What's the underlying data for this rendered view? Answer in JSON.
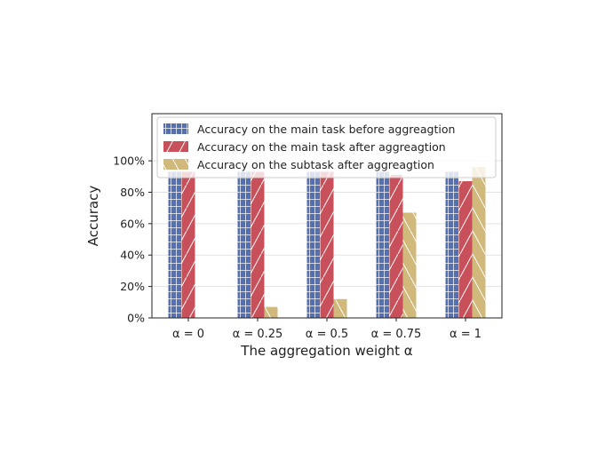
{
  "chart_data": {
    "type": "bar",
    "xlabel": "The aggregation weight α",
    "ylabel": "Accuracy",
    "categories": [
      {
        "label": "α = 0"
      },
      {
        "label": "α = 0.25"
      },
      {
        "label": "α = 0.5"
      },
      {
        "label": "α = 0.75"
      },
      {
        "label": "α = 1"
      }
    ],
    "series": [
      {
        "name": "Accuracy on the main task before aggreagtion",
        "color": "#5470b0",
        "pattern": "grid",
        "values": [
          93,
          93,
          93,
          93,
          93
        ]
      },
      {
        "name": "Accuracy on the main task after aggreagtion",
        "color": "#c8505a",
        "pattern": "slash",
        "values": [
          93,
          93,
          93,
          91,
          87
        ]
      },
      {
        "name": "Accuracy on the subtask after aggreagtion",
        "color": "#d0b97a",
        "pattern": "backslash",
        "values": [
          0,
          7,
          12,
          67,
          96
        ]
      }
    ],
    "ylim": [
      0,
      130
    ],
    "yticks": [
      0,
      20,
      40,
      60,
      80,
      100
    ],
    "ytick_suffix": "%",
    "grid": true,
    "legend_position": "top-center"
  }
}
